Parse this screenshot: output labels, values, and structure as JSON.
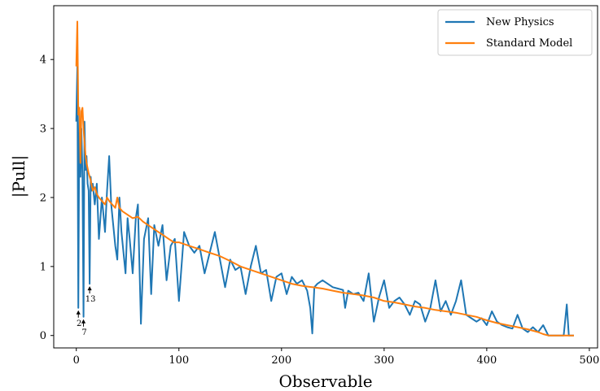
{
  "chart_data": {
    "type": "line",
    "xlabel": "Observable",
    "ylabel": "|Pull|",
    "xlim": [
      -22,
      508
    ],
    "ylim": [
      -0.18,
      4.78
    ],
    "x_ticks": [
      0,
      100,
      200,
      300,
      400,
      500
    ],
    "y_ticks": [
      0,
      1,
      2,
      3,
      4
    ],
    "grid": false,
    "legend_position": "top-right",
    "colors": {
      "new_physics": "#1f77b4",
      "standard_model": "#ff7f0e"
    },
    "series": [
      {
        "name": "New Physics",
        "x": [
          0,
          1,
          2,
          3,
          4,
          5,
          6,
          7,
          8,
          9,
          10,
          11,
          12,
          13,
          14,
          15,
          16,
          18,
          20,
          22,
          25,
          28,
          30,
          32,
          34,
          36,
          38,
          40,
          42,
          44,
          46,
          48,
          50,
          52,
          55,
          58,
          60,
          63,
          66,
          70,
          73,
          76,
          80,
          84,
          88,
          92,
          96,
          100,
          105,
          110,
          115,
          120,
          125,
          130,
          135,
          140,
          145,
          150,
          155,
          160,
          165,
          170,
          175,
          180,
          185,
          190,
          195,
          200,
          205,
          210,
          215,
          220,
          225,
          228,
          230,
          232,
          235,
          240,
          245,
          250,
          255,
          260,
          262,
          265,
          270,
          275,
          280,
          285,
          290,
          295,
          300,
          305,
          310,
          315,
          320,
          325,
          330,
          335,
          340,
          345,
          350,
          355,
          360,
          365,
          370,
          375,
          380,
          385,
          390,
          395,
          400,
          405,
          410,
          415,
          420,
          425,
          430,
          435,
          440,
          445,
          450,
          455,
          460,
          465,
          470,
          475,
          478,
          480,
          482,
          485
        ],
        "y": [
          3.1,
          3.9,
          0.4,
          3.3,
          2.3,
          3.0,
          2.3,
          0.27,
          3.1,
          2.4,
          2.6,
          2.2,
          2.1,
          0.75,
          2.3,
          2.1,
          2.2,
          1.9,
          2.2,
          1.4,
          2.0,
          1.5,
          2.1,
          2.6,
          1.9,
          1.6,
          1.3,
          1.1,
          2.0,
          1.5,
          1.2,
          0.9,
          1.7,
          1.4,
          0.9,
          1.7,
          1.9,
          0.17,
          1.4,
          1.7,
          0.6,
          1.6,
          1.3,
          1.6,
          0.8,
          1.3,
          1.4,
          0.5,
          1.5,
          1.3,
          1.2,
          1.3,
          0.9,
          1.2,
          1.5,
          1.1,
          0.7,
          1.1,
          0.95,
          1.0,
          0.6,
          1.0,
          1.3,
          0.9,
          0.95,
          0.5,
          0.85,
          0.9,
          0.6,
          0.85,
          0.75,
          0.8,
          0.65,
          0.4,
          0.03,
          0.7,
          0.75,
          0.8,
          0.75,
          0.7,
          0.68,
          0.66,
          0.4,
          0.65,
          0.6,
          0.62,
          0.5,
          0.9,
          0.2,
          0.55,
          0.8,
          0.4,
          0.5,
          0.55,
          0.45,
          0.3,
          0.5,
          0.45,
          0.2,
          0.4,
          0.8,
          0.35,
          0.5,
          0.3,
          0.5,
          0.8,
          0.3,
          0.25,
          0.2,
          0.25,
          0.15,
          0.35,
          0.2,
          0.15,
          0.12,
          0.1,
          0.3,
          0.1,
          0.05,
          0.12,
          0.05,
          0.15,
          0.0,
          0.0,
          0.0,
          0.0,
          0.45,
          0.0,
          0.0,
          0.0
        ]
      },
      {
        "name": "Standard Model",
        "x": [
          0,
          1,
          2,
          3,
          4,
          5,
          6,
          7,
          8,
          9,
          10,
          12,
          14,
          16,
          18,
          20,
          22,
          25,
          28,
          30,
          32,
          35,
          38,
          40,
          42,
          45,
          50,
          55,
          60,
          65,
          70,
          75,
          80,
          85,
          90,
          95,
          100,
          110,
          120,
          130,
          140,
          150,
          160,
          170,
          180,
          190,
          200,
          210,
          220,
          230,
          240,
          250,
          260,
          270,
          280,
          290,
          300,
          310,
          320,
          330,
          340,
          350,
          360,
          370,
          380,
          390,
          400,
          410,
          420,
          430,
          440,
          450,
          455,
          460,
          465,
          470,
          475,
          480,
          485
        ],
        "y": [
          3.9,
          4.55,
          3.2,
          3.3,
          2.5,
          3.25,
          3.3,
          3.0,
          2.8,
          2.6,
          2.5,
          2.35,
          2.25,
          2.1,
          2.15,
          2.05,
          2.0,
          1.95,
          1.9,
          2.0,
          1.95,
          1.9,
          1.85,
          2.0,
          1.85,
          1.8,
          1.75,
          1.7,
          1.72,
          1.65,
          1.6,
          1.55,
          1.5,
          1.45,
          1.4,
          1.35,
          1.35,
          1.3,
          1.25,
          1.2,
          1.15,
          1.08,
          1.0,
          0.95,
          0.9,
          0.85,
          0.8,
          0.75,
          0.72,
          0.7,
          0.68,
          0.65,
          0.62,
          0.6,
          0.58,
          0.55,
          0.5,
          0.48,
          0.45,
          0.42,
          0.4,
          0.37,
          0.35,
          0.33,
          0.3,
          0.27,
          0.22,
          0.18,
          0.15,
          0.12,
          0.09,
          0.05,
          0.02,
          0.0,
          0.0,
          0.0,
          0.0,
          0.0,
          0.0
        ]
      }
    ],
    "annotations": [
      {
        "text": "2",
        "x": 2,
        "y": 0.4
      },
      {
        "text": "7",
        "x": 7,
        "y": 0.27
      },
      {
        "text": "13",
        "x": 13,
        "y": 0.75
      }
    ]
  }
}
